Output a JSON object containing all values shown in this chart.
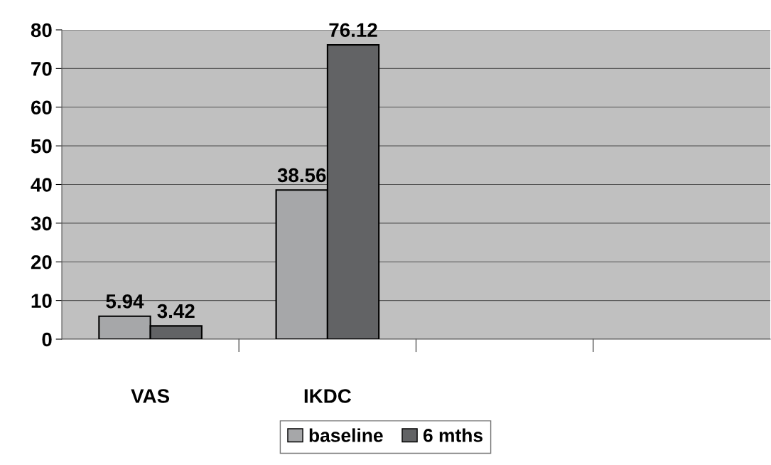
{
  "chart_data": {
    "type": "bar",
    "categories": [
      "VAS",
      "IKDC",
      null,
      null
    ],
    "series": [
      {
        "name": "baseline",
        "color": "#a6a7a9",
        "values": [
          5.94,
          38.56,
          null,
          null
        ]
      },
      {
        "name": "6 mths",
        "color": "#626365",
        "values": [
          3.42,
          76.12,
          null,
          null
        ]
      }
    ],
    "ylim": [
      0,
      80
    ],
    "yticks": [
      0,
      10,
      20,
      30,
      40,
      50,
      60,
      70,
      80
    ],
    "grid": "y",
    "legend": "bottom",
    "data_labels": true
  }
}
